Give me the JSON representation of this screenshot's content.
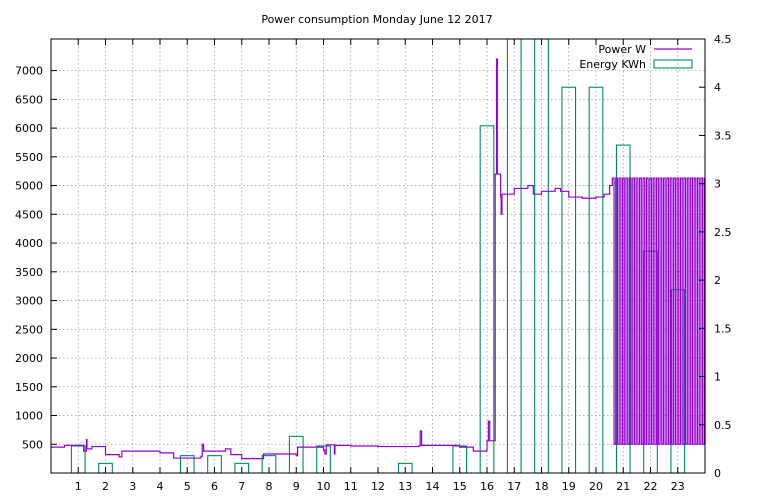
{
  "chart_data": {
    "type": "line",
    "title": "Power consumption Monday June 12 2017",
    "xlabel": "",
    "ylabel": "",
    "y2label": "",
    "x_ticks": [
      "1",
      "2",
      "3",
      "4",
      "5",
      "6",
      "7",
      "8",
      "9",
      "10",
      "11",
      "12",
      "13",
      "14",
      "15",
      "16",
      "17",
      "18",
      "19",
      "20",
      "21",
      "22",
      "23"
    ],
    "xlim": [
      0,
      24
    ],
    "ylim": [
      0,
      7550
    ],
    "y_ticks": [
      500,
      1000,
      1500,
      2000,
      2500,
      3000,
      3500,
      4000,
      4500,
      5000,
      5500,
      6000,
      6500,
      7000
    ],
    "y2lim": [
      0,
      4.5
    ],
    "y2_ticks": [
      "0",
      "0.5",
      "1",
      "1.5",
      "2",
      "2.5",
      "3",
      "3.5",
      "4",
      "4.5"
    ],
    "grid": true,
    "legend_position": "top-right",
    "series": [
      {
        "name": "Power W",
        "axis": "left",
        "style": "step-line",
        "color": "#9400d3",
        "points": [
          [
            0,
            450
          ],
          [
            0.5,
            480
          ],
          [
            1.2,
            380
          ],
          [
            1.3,
            580
          ],
          [
            1.32,
            420
          ],
          [
            1.5,
            460
          ],
          [
            2,
            320
          ],
          [
            2.5,
            280
          ],
          [
            2.6,
            380
          ],
          [
            4,
            350
          ],
          [
            4.5,
            260
          ],
          [
            5.5,
            290
          ],
          [
            5.55,
            500
          ],
          [
            5.6,
            380
          ],
          [
            6.4,
            420
          ],
          [
            6.6,
            320
          ],
          [
            7,
            250
          ],
          [
            7.5,
            250
          ],
          [
            7.8,
            330
          ],
          [
            9,
            300
          ],
          [
            9.05,
            450
          ],
          [
            10,
            400
          ],
          [
            10.05,
            330
          ],
          [
            10.1,
            490
          ],
          [
            10.4,
            330
          ],
          [
            10.42,
            480
          ],
          [
            11,
            470
          ],
          [
            12,
            460
          ],
          [
            13.5,
            470
          ],
          [
            13.55,
            730
          ],
          [
            13.6,
            480
          ],
          [
            14,
            480
          ],
          [
            15,
            450
          ],
          [
            15.5,
            380
          ],
          [
            16,
            560
          ],
          [
            16.05,
            900
          ],
          [
            16.1,
            560
          ],
          [
            16.3,
            5200
          ],
          [
            16.35,
            7200
          ],
          [
            16.38,
            5200
          ],
          [
            16.5,
            4800
          ],
          [
            16.52,
            4500
          ],
          [
            16.55,
            4850
          ],
          [
            17,
            4950
          ],
          [
            17.5,
            5000
          ],
          [
            17.7,
            4850
          ],
          [
            18,
            4900
          ],
          [
            18.5,
            4950
          ],
          [
            18.7,
            4900
          ],
          [
            19,
            4800
          ],
          [
            19.5,
            4780
          ],
          [
            20,
            4800
          ],
          [
            20.3,
            4850
          ],
          [
            20.5,
            5000
          ]
        ],
        "oscillation": {
          "x_start": 20.6,
          "x_end": 24,
          "high": 5130,
          "low": 500,
          "period": 0.125
        }
      },
      {
        "name": "Energy KWh",
        "axis": "right",
        "style": "histogram-bars",
        "color": "#008b6a",
        "bar_width": 0.5,
        "bars": [
          [
            1,
            0.28
          ],
          [
            2,
            0.1
          ],
          [
            3,
            0
          ],
          [
            4,
            0
          ],
          [
            5,
            0.18
          ],
          [
            6,
            0.18
          ],
          [
            7,
            0.1
          ],
          [
            8,
            0.18
          ],
          [
            9,
            0.38
          ],
          [
            10,
            0.28
          ],
          [
            11,
            0
          ],
          [
            12,
            0
          ],
          [
            13,
            0.1
          ],
          [
            14,
            0
          ],
          [
            15,
            0.28
          ],
          [
            16,
            3.6
          ],
          [
            17,
            4.5
          ],
          [
            18,
            4.5
          ],
          [
            19,
            4.0
          ],
          [
            20,
            4.0
          ],
          [
            21,
            3.4
          ],
          [
            22,
            2.3
          ],
          [
            23,
            1.9
          ]
        ]
      }
    ]
  }
}
